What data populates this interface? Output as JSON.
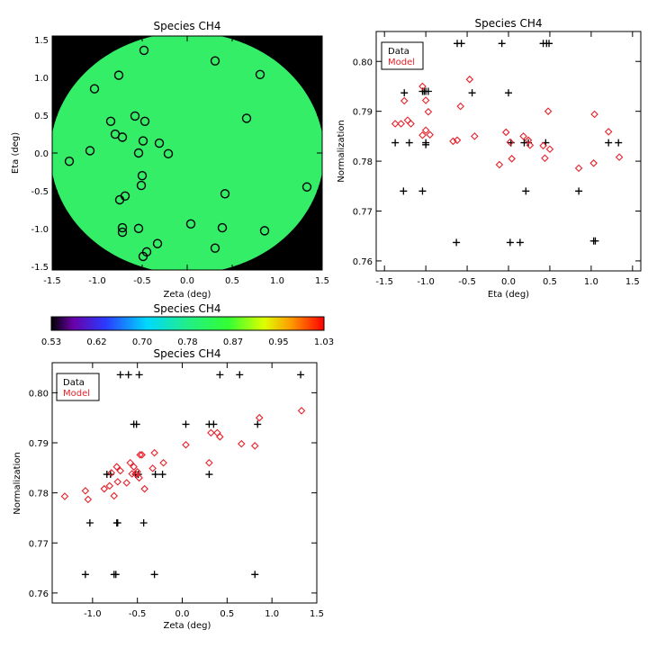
{
  "chart_data": [
    {
      "id": "map",
      "type": "scatter",
      "title": "Species CH4",
      "xlabel": "Zeta (deg)",
      "ylabel": "Eta (deg)",
      "xlim": [
        -1.5,
        1.5
      ],
      "ylim": [
        -1.55,
        1.55
      ],
      "xticks": [
        -1.5,
        -1.0,
        -0.5,
        0.0,
        0.5,
        1.0,
        1.5
      ],
      "yticks": [
        -1.5,
        -1.0,
        -0.5,
        0.0,
        0.5,
        1.0,
        1.5
      ],
      "background": "#000000",
      "disk_color": "#33ee66",
      "points": [
        [
          -0.48,
          1.36
        ],
        [
          0.31,
          1.22
        ],
        [
          -0.76,
          1.03
        ],
        [
          0.81,
          1.04
        ],
        [
          -1.03,
          0.85
        ],
        [
          -0.58,
          0.49
        ],
        [
          -0.47,
          0.42
        ],
        [
          -0.85,
          0.42
        ],
        [
          0.66,
          0.46
        ],
        [
          -0.8,
          0.25
        ],
        [
          -0.72,
          0.21
        ],
        [
          -0.49,
          0.16
        ],
        [
          -0.31,
          0.13
        ],
        [
          -1.08,
          0.03
        ],
        [
          -0.54,
          0.0
        ],
        [
          -0.21,
          -0.01
        ],
        [
          -1.31,
          -0.11
        ],
        [
          -0.5,
          -0.3
        ],
        [
          -0.51,
          -0.43
        ],
        [
          1.33,
          -0.45
        ],
        [
          -0.69,
          -0.57
        ],
        [
          0.42,
          -0.54
        ],
        [
          -0.75,
          -0.62
        ],
        [
          0.04,
          -0.94
        ],
        [
          -0.72,
          -0.99
        ],
        [
          -0.54,
          -1.0
        ],
        [
          0.39,
          -0.99
        ],
        [
          0.86,
          -1.03
        ],
        [
          -0.72,
          -1.05
        ],
        [
          -0.33,
          -1.2
        ],
        [
          0.31,
          -1.26
        ],
        [
          -0.45,
          -1.31
        ],
        [
          -0.49,
          -1.37
        ]
      ]
    },
    {
      "id": "eta",
      "type": "scatter",
      "title": "Species CH4",
      "xlabel": "Eta (deg)",
      "ylabel": "Normalization",
      "xlim": [
        -1.6,
        1.6
      ],
      "ylim": [
        0.758,
        0.806
      ],
      "xticks": [
        -1.5,
        -1.0,
        -0.5,
        0.0,
        0.5,
        1.0,
        1.5
      ],
      "yticks": [
        0.76,
        0.77,
        0.78,
        0.79,
        0.8
      ],
      "ytick_labels": [
        "0.76",
        "0.77",
        "0.78",
        "0.79",
        "0.80"
      ],
      "legend": [
        "Data",
        "Model"
      ],
      "series": [
        {
          "name": "Data",
          "color": "#000000",
          "marker": "plus",
          "points": [
            [
              -1.37,
              0.7837
            ],
            [
              -1.27,
              0.774
            ],
            [
              -1.26,
              0.7937
            ],
            [
              -1.2,
              0.7837
            ],
            [
              -1.04,
              0.794
            ],
            [
              -1.02,
              0.794
            ],
            [
              -1.0,
              0.794
            ],
            [
              -0.97,
              0.794
            ],
            [
              -1.04,
              0.774
            ],
            [
              -1.0,
              0.7837
            ],
            [
              -1.0,
              0.7833
            ],
            [
              -0.62,
              0.8036
            ],
            [
              -0.57,
              0.8036
            ],
            [
              -0.63,
              0.7637
            ],
            [
              -0.44,
              0.7937
            ],
            [
              -0.08,
              0.8036
            ],
            [
              0.0,
              0.7937
            ],
            [
              0.03,
              0.7837
            ],
            [
              0.02,
              0.7637
            ],
            [
              0.14,
              0.7637
            ],
            [
              0.19,
              0.7837
            ],
            [
              0.24,
              0.7837
            ],
            [
              0.21,
              0.774
            ],
            [
              0.42,
              0.8036
            ],
            [
              0.46,
              0.8036
            ],
            [
              0.49,
              0.8036
            ],
            [
              0.45,
              0.7837
            ],
            [
              0.85,
              0.774
            ],
            [
              1.03,
              0.764
            ],
            [
              1.05,
              0.764
            ],
            [
              1.21,
              0.7837
            ],
            [
              1.33,
              0.7837
            ]
          ]
        },
        {
          "name": "Model",
          "color": "#e8202a",
          "marker": "diamond",
          "points": [
            [
              -1.37,
              0.7875
            ],
            [
              -1.3,
              0.7875
            ],
            [
              -1.26,
              0.7921
            ],
            [
              -1.22,
              0.7882
            ],
            [
              -1.18,
              0.7875
            ],
            [
              -1.04,
              0.795
            ],
            [
              -1.04,
              0.7852
            ],
            [
              -1.0,
              0.7862
            ],
            [
              -1.0,
              0.7922
            ],
            [
              -0.97,
              0.7899
            ],
            [
              -0.95,
              0.7853
            ],
            [
              -0.67,
              0.784
            ],
            [
              -0.62,
              0.7842
            ],
            [
              -0.58,
              0.791
            ],
            [
              -0.47,
              0.7964
            ],
            [
              -0.41,
              0.785
            ],
            [
              -0.11,
              0.7793
            ],
            [
              -0.03,
              0.7858
            ],
            [
              0.02,
              0.7838
            ],
            [
              0.04,
              0.7805
            ],
            [
              0.18,
              0.785
            ],
            [
              0.24,
              0.7842
            ],
            [
              0.26,
              0.7832
            ],
            [
              0.42,
              0.7831
            ],
            [
              0.44,
              0.7806
            ],
            [
              0.48,
              0.79
            ],
            [
              0.5,
              0.7824
            ],
            [
              0.85,
              0.7786
            ],
            [
              1.03,
              0.7796
            ],
            [
              1.04,
              0.7894
            ],
            [
              1.21,
              0.7859
            ],
            [
              1.34,
              0.7808
            ]
          ]
        }
      ]
    },
    {
      "id": "zeta",
      "type": "scatter",
      "title": "Species CH4",
      "xlabel": "Zeta (deg)",
      "ylabel": "Normalization",
      "xlim": [
        -1.45,
        1.5
      ],
      "ylim": [
        0.758,
        0.806
      ],
      "xticks": [
        -1.5,
        -1.0,
        -0.5,
        0.0,
        0.5,
        1.0,
        1.5
      ],
      "yticks": [
        0.76,
        0.77,
        0.78,
        0.79,
        0.8
      ],
      "ytick_labels": [
        "0.76",
        "0.77",
        "0.78",
        "0.79",
        "0.80"
      ],
      "legend": [
        "Data",
        "Model"
      ],
      "series": [
        {
          "name": "Data",
          "color": "#000000",
          "marker": "plus",
          "points": [
            [
              -0.69,
              0.8036
            ],
            [
              -0.6,
              0.8036
            ],
            [
              -0.48,
              0.8036
            ],
            [
              0.42,
              0.8036
            ],
            [
              0.64,
              0.8036
            ],
            [
              1.32,
              0.8036
            ],
            [
              -0.54,
              0.7937
            ],
            [
              -0.51,
              0.7937
            ],
            [
              0.04,
              0.7937
            ],
            [
              0.3,
              0.7937
            ],
            [
              0.35,
              0.7937
            ],
            [
              0.84,
              0.7937
            ],
            [
              -0.84,
              0.7837
            ],
            [
              -0.8,
              0.7837
            ],
            [
              -0.52,
              0.7837
            ],
            [
              -0.49,
              0.7837
            ],
            [
              -0.3,
              0.7837
            ],
            [
              -0.22,
              0.7837
            ],
            [
              0.3,
              0.7837
            ],
            [
              -1.03,
              0.774
            ],
            [
              -0.73,
              0.774
            ],
            [
              -0.72,
              0.774
            ],
            [
              -0.43,
              0.774
            ],
            [
              -1.08,
              0.7637
            ],
            [
              -0.76,
              0.7637
            ],
            [
              -0.74,
              0.7637
            ],
            [
              -0.31,
              0.7637
            ],
            [
              0.81,
              0.7637
            ]
          ]
        },
        {
          "name": "Model",
          "color": "#e8202a",
          "marker": "diamond",
          "points": [
            [
              -1.31,
              0.7793
            ],
            [
              -1.08,
              0.7804
            ],
            [
              -1.05,
              0.7787
            ],
            [
              -0.87,
              0.7808
            ],
            [
              -0.81,
              0.7814
            ],
            [
              -0.79,
              0.784
            ],
            [
              -0.76,
              0.7794
            ],
            [
              -0.73,
              0.7852
            ],
            [
              -0.72,
              0.7822
            ],
            [
              -0.69,
              0.7844
            ],
            [
              -0.62,
              0.782
            ],
            [
              -0.58,
              0.786
            ],
            [
              -0.56,
              0.7838
            ],
            [
              -0.54,
              0.7852
            ],
            [
              -0.52,
              0.7838
            ],
            [
              -0.5,
              0.7842
            ],
            [
              -0.48,
              0.783
            ],
            [
              -0.47,
              0.7876
            ],
            [
              -0.45,
              0.7876
            ],
            [
              -0.42,
              0.7808
            ],
            [
              -0.33,
              0.7849
            ],
            [
              -0.31,
              0.788
            ],
            [
              -0.21,
              0.786
            ],
            [
              0.04,
              0.7896
            ],
            [
              0.3,
              0.786
            ],
            [
              0.32,
              0.792
            ],
            [
              0.39,
              0.792
            ],
            [
              0.42,
              0.7912
            ],
            [
              0.66,
              0.7898
            ],
            [
              0.81,
              0.7894
            ],
            [
              0.86,
              0.795
            ],
            [
              1.33,
              0.7964
            ]
          ]
        }
      ]
    }
  ],
  "colorbar": {
    "title": "Species CH4",
    "tick_labels": [
      "0.53",
      "0.62",
      "0.70",
      "0.78",
      "0.87",
      "0.95",
      "1.03"
    ]
  }
}
